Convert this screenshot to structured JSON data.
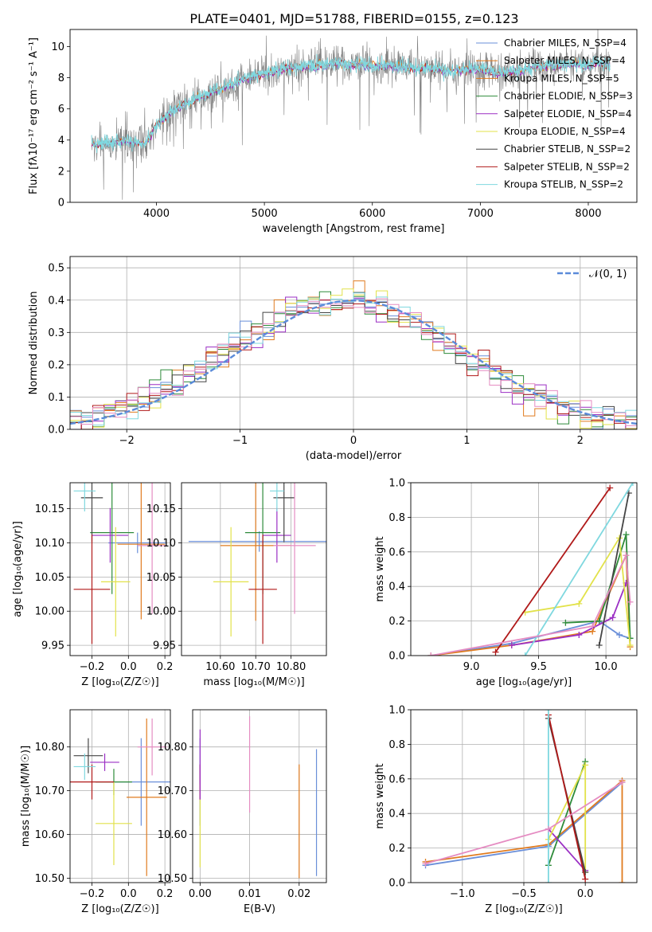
{
  "figure_title": "PLATE=0401, MJD=51788, FIBERID=0155, z=0.123",
  "model_colors": [
    "#6a8fd9",
    "#e07b1f",
    "#2e8b3a",
    "#9b2fc4",
    "#e2e24a",
    "#444444",
    "#b01919",
    "#7fd8df",
    "#e58cc2"
  ],
  "chart_data": [
    {
      "id": "spectrum",
      "type": "line",
      "title": "PLATE=0401, MJD=51788, FIBERID=0155, z=0.123",
      "xlabel": "wavelength [Angstrom, rest frame]",
      "ylabel": "Flux [fλ10⁻¹⁷ erg cm⁻² s⁻¹ A⁻¹]",
      "xlim": [
        3200,
        8450
      ],
      "ylim": [
        0,
        11.1
      ],
      "xticks": [
        4000,
        5000,
        6000,
        7000,
        8000
      ],
      "yticks": [
        0,
        2,
        4,
        6,
        8,
        10
      ],
      "grid": false,
      "legend_position": "top-right",
      "data_color": "#808080",
      "legend": [
        {
          "label": "Chabrier MILES, N_SSP=4",
          "color": "#6a8fd9"
        },
        {
          "label": "Salpeter MILES, N_SSP=4",
          "color": "#e07b1f"
        },
        {
          "label": "Kroupa MILES, N_SSP=5",
          "color": "#e07b1f"
        },
        {
          "label": "Chabrier ELODIE, N_SSP=3",
          "color": "#2e8b3a"
        },
        {
          "label": "Salpeter ELODIE, N_SSP=4",
          "color": "#9b2fc4"
        },
        {
          "label": "Kroupa ELODIE, N_SSP=4",
          "color": "#e2e24a"
        },
        {
          "label": "Chabrier STELIB, N_SSP=2",
          "color": "#444444"
        },
        {
          "label": "Salpeter STELIB, N_SSP=2",
          "color": "#b01919"
        },
        {
          "label": "Kroupa STELIB, N_SSP=2",
          "color": "#7fd8df"
        }
      ],
      "continuum": {
        "x": [
          3400,
          3500,
          3600,
          3700,
          3800,
          3900,
          4000,
          4100,
          4200,
          4300,
          4400,
          4500,
          4600,
          4700,
          4800,
          4900,
          5000,
          5100,
          5200,
          5300,
          5400,
          5500,
          5600,
          5700,
          5800,
          5900,
          6000,
          6100,
          6200,
          6300,
          6400,
          6500,
          6600,
          6700,
          6800,
          6900,
          7000,
          7100,
          7200,
          7300,
          7400,
          7500,
          7600,
          7700,
          7800,
          7900,
          8000,
          8100,
          8200
        ],
        "y": [
          3.7,
          3.8,
          3.9,
          4.0,
          3.9,
          3.8,
          5.0,
          5.6,
          6.2,
          6.4,
          6.8,
          7.1,
          7.3,
          7.6,
          7.9,
          8.1,
          8.3,
          8.4,
          8.6,
          8.7,
          8.8,
          8.8,
          8.9,
          8.9,
          8.9,
          8.9,
          8.8,
          8.8,
          8.8,
          8.7,
          8.6,
          8.7,
          8.6,
          8.4,
          8.5,
          8.6,
          8.6,
          8.4,
          8.3,
          8.4,
          8.5,
          8.7,
          8.8,
          8.8,
          8.9,
          8.9,
          8.8,
          9.0,
          8.9
        ]
      }
    },
    {
      "id": "residuals",
      "type": "line",
      "xlabel": "(data-model)/error",
      "ylabel": "Normed distribution",
      "xlim": [
        -2.5,
        2.5
      ],
      "ylim": [
        0,
        0.535
      ],
      "xticks": [
        -2,
        -1,
        0,
        1,
        2
      ],
      "yticks": [
        0.0,
        0.1,
        0.2,
        0.3,
        0.4,
        0.5
      ],
      "grid": true,
      "legend_position": "top-right",
      "legend": [
        {
          "label": "𝒩(0, 1)",
          "color": "#5b8bd9",
          "style": "dashed"
        }
      ],
      "series": [
        {
          "label": "𝒩(0, 1)",
          "mean": 0,
          "sigma": 1
        }
      ],
      "histogram_bin_width": 0.1
    },
    {
      "id": "z-age",
      "type": "scatter",
      "xlabel": "Z [log₁₀(Z/Z☉)]",
      "ylabel": "age  [log₁₀(age/yr)]",
      "xlim": [
        -0.32,
        0.23
      ],
      "ylim": [
        9.935,
        10.188
      ],
      "xticks": [
        -0.2,
        0.0,
        0.2
      ],
      "yticks": [
        9.95,
        10.0,
        10.05,
        10.1,
        10.15
      ],
      "grid": true,
      "points": [
        {
          "x": 0.05,
          "y": 10.1,
          "xerr": 0.16,
          "yerr": 0.015,
          "color": "#6a8fd9"
        },
        {
          "x": 0.07,
          "y": 10.098,
          "xerr": 0.13,
          "yerr": 0.11,
          "color": "#e07b1f"
        },
        {
          "x": -0.09,
          "y": 10.115,
          "xerr": 0.12,
          "yerr": 0.09,
          "color": "#2e8b3a"
        },
        {
          "x": -0.1,
          "y": 10.111,
          "xerr": 0.1,
          "yerr": 0.04,
          "color": "#9b2fc4"
        },
        {
          "x": -0.07,
          "y": 10.043,
          "xerr": 0.08,
          "yerr": 0.08,
          "color": "#e2e24a"
        },
        {
          "x": -0.2,
          "y": 10.166,
          "xerr": 0.06,
          "yerr": 0.065,
          "color": "#444444"
        },
        {
          "x": -0.2,
          "y": 10.032,
          "xerr": 0.1,
          "yerr": 0.08,
          "color": "#b01919"
        },
        {
          "x": -0.24,
          "y": 10.176,
          "xerr": 0.06,
          "yerr": 0.03,
          "color": "#7fd8df"
        },
        {
          "x": 0.13,
          "y": 10.096,
          "xerr": 0.08,
          "yerr": 0.1,
          "color": "#e58cc2"
        }
      ]
    },
    {
      "id": "mass-age",
      "type": "scatter",
      "xlabel": "mass [log₁₀(M/M☉)]",
      "ylabel": "",
      "xlim": [
        10.49,
        10.9
      ],
      "ylim": [
        9.935,
        10.188
      ],
      "xticks": [
        10.6,
        10.7,
        10.8
      ],
      "yticks": [
        9.95,
        10.0,
        10.05,
        10.1,
        10.15
      ],
      "grid": true,
      "points": [
        {
          "x": 10.71,
          "y": 10.102,
          "xerr": 0.2,
          "yerr": 0.015,
          "color": "#6a8fd9"
        },
        {
          "x": 10.7,
          "y": 10.096,
          "xerr": 0.1,
          "yerr": 0.11,
          "color": "#e07b1f"
        },
        {
          "x": 10.72,
          "y": 10.115,
          "xerr": 0.05,
          "yerr": 0.09,
          "color": "#2e8b3a"
        },
        {
          "x": 10.76,
          "y": 10.111,
          "xerr": 0.04,
          "yerr": 0.04,
          "color": "#9b2fc4"
        },
        {
          "x": 10.63,
          "y": 10.043,
          "xerr": 0.05,
          "yerr": 0.08,
          "color": "#e2e24a"
        },
        {
          "x": 10.78,
          "y": 10.166,
          "xerr": 0.03,
          "yerr": 0.065,
          "color": "#444444"
        },
        {
          "x": 10.72,
          "y": 10.032,
          "xerr": 0.04,
          "yerr": 0.08,
          "color": "#b01919"
        },
        {
          "x": 10.76,
          "y": 10.176,
          "xerr": 0.02,
          "yerr": 0.03,
          "color": "#7fd8df"
        },
        {
          "x": 10.81,
          "y": 10.096,
          "xerr": 0.06,
          "yerr": 0.1,
          "color": "#e58cc2"
        }
      ]
    },
    {
      "id": "age-weight",
      "type": "line",
      "xlabel": "age  [log₁₀(age/yr)]",
      "ylabel": "mass weight",
      "xlim": [
        8.55,
        10.23
      ],
      "ylim": [
        0,
        1
      ],
      "xticks": [
        9.0,
        9.5,
        10.0
      ],
      "yticks": [
        0.0,
        0.2,
        0.4,
        0.6,
        0.8,
        1.0
      ],
      "grid": true,
      "series": [
        {
          "color": "#6a8fd9",
          "x": [
            8.7,
            9.3,
            9.95,
            10.1,
            10.18
          ],
          "y": [
            0.0,
            0.07,
            0.2,
            0.12,
            0.1
          ]
        },
        {
          "color": "#e07b1f",
          "x": [
            8.7,
            9.3,
            9.9,
            10.15,
            10.18
          ],
          "y": [
            0.0,
            0.06,
            0.14,
            0.58,
            0.05
          ]
        },
        {
          "color": "#2e8b3a",
          "x": [
            9.7,
            9.95,
            10.15,
            10.18
          ],
          "y": [
            0.19,
            0.2,
            0.7,
            0.1
          ]
        },
        {
          "color": "#9b2fc4",
          "x": [
            9.3,
            9.8,
            10.05,
            10.15
          ],
          "y": [
            0.06,
            0.12,
            0.22,
            0.42
          ]
        },
        {
          "color": "#e2e24a",
          "x": [
            9.4,
            9.8,
            10.1,
            10.18
          ],
          "y": [
            0.25,
            0.3,
            0.68,
            0.06
          ]
        },
        {
          "color": "#444444",
          "x": [
            9.95,
            10.17
          ],
          "y": [
            0.06,
            0.94
          ]
        },
        {
          "color": "#b01919",
          "x": [
            9.18,
            10.03
          ],
          "y": [
            0.02,
            0.97
          ]
        },
        {
          "color": "#7fd8df",
          "x": [
            9.4,
            10.2
          ],
          "y": [
            0.0,
            1.0
          ]
        },
        {
          "color": "#e58cc2",
          "x": [
            8.7,
            9.9,
            10.15,
            10.18
          ],
          "y": [
            0.0,
            0.17,
            0.58,
            0.31
          ]
        }
      ]
    },
    {
      "id": "z-mass",
      "type": "scatter",
      "xlabel": "Z [log₁₀(Z/Z☉)]",
      "ylabel": "mass [log₁₀(M/M☉)]",
      "xlim": [
        -0.32,
        0.23
      ],
      "ylim": [
        10.49,
        10.885
      ],
      "xticks": [
        -0.2,
        0.0,
        0.2
      ],
      "yticks": [
        10.5,
        10.6,
        10.7,
        10.8
      ],
      "grid": true,
      "points": [
        {
          "x": 0.07,
          "y": 10.72,
          "xerr": 0.16,
          "yerr": 0.1,
          "color": "#6a8fd9"
        },
        {
          "x": 0.1,
          "y": 10.685,
          "xerr": 0.11,
          "yerr": 0.18,
          "color": "#e07b1f"
        },
        {
          "x": -0.08,
          "y": 10.72,
          "xerr": 0.1,
          "yerr": 0.03,
          "color": "#2e8b3a"
        },
        {
          "x": -0.13,
          "y": 10.765,
          "xerr": 0.08,
          "yerr": 0.02,
          "color": "#9b2fc4"
        },
        {
          "x": -0.08,
          "y": 10.625,
          "xerr": 0.1,
          "yerr": 0.095,
          "color": "#e2e24a"
        },
        {
          "x": -0.22,
          "y": 10.78,
          "xerr": 0.08,
          "yerr": 0.04,
          "color": "#444444"
        },
        {
          "x": -0.2,
          "y": 10.72,
          "xerr": 0.12,
          "yerr": 0.04,
          "color": "#b01919"
        },
        {
          "x": -0.24,
          "y": 10.755,
          "xerr": 0.06,
          "yerr": 0.03,
          "color": "#7fd8df"
        },
        {
          "x": 0.13,
          "y": 10.8,
          "xerr": 0.08,
          "yerr": 0.065,
          "color": "#e58cc2"
        }
      ]
    },
    {
      "id": "ebv-mass",
      "type": "scatter",
      "xlabel": "E(B-V)",
      "ylabel": "",
      "xlim": [
        -0.0015,
        0.0255
      ],
      "ylim": [
        10.49,
        10.885
      ],
      "xticks": [
        0.0,
        0.01,
        0.02
      ],
      "yticks": [
        10.5,
        10.6,
        10.7,
        10.8
      ],
      "grid": true,
      "points": [
        {
          "x": 0.0,
          "y": 10.72,
          "yerr": 0.1,
          "color": "#6a8fd9"
        },
        {
          "x": 0.0,
          "y": 10.72,
          "yerr": 0.04,
          "color": "#9b2fc4"
        },
        {
          "x": 0.0,
          "y": 10.62,
          "yerr": 0.095,
          "color": "#e2e24a"
        },
        {
          "x": 0.0,
          "y": 10.72,
          "yerr": 0.04,
          "color": "#b01919"
        },
        {
          "x": 0.0,
          "y": 10.76,
          "yerr": 0.08,
          "color": "#9b2fc4"
        },
        {
          "x": 0.01,
          "y": 10.76,
          "yerr": 0.11,
          "color": "#e58cc2"
        },
        {
          "x": 0.02,
          "y": 10.63,
          "yerr": 0.13,
          "color": "#e07b1f"
        },
        {
          "x": 0.0235,
          "y": 10.65,
          "yerr": 0.145,
          "color": "#6a8fd9"
        }
      ]
    },
    {
      "id": "z-weight",
      "type": "line",
      "xlabel": "Z [log₁₀(Z/Z☉)]",
      "ylabel": "mass weight",
      "xlim": [
        -1.42,
        0.42
      ],
      "ylim": [
        0,
        1
      ],
      "xticks": [
        -1.0,
        -0.5,
        0.0
      ],
      "yticks": [
        0.0,
        0.2,
        0.4,
        0.6,
        0.8,
        1.0
      ],
      "grid": true,
      "series": [
        {
          "color": "#6a8fd9",
          "x": [
            -1.3,
            -0.3,
            0.3
          ],
          "y": [
            0.1,
            0.21,
            0.58
          ]
        },
        {
          "color": "#e07b1f",
          "x": [
            -1.3,
            -0.3,
            0.3,
            0.3
          ],
          "y": [
            0.12,
            0.22,
            0.59,
            0.0
          ]
        },
        {
          "color": "#2e8b3a",
          "x": [
            -0.3,
            0.0
          ],
          "y": [
            0.1,
            0.7
          ]
        },
        {
          "color": "#9b2fc4",
          "x": [
            -0.3,
            0.0
          ],
          "y": [
            0.31,
            0.07
          ]
        },
        {
          "color": "#e2e24a",
          "x": [
            -0.3,
            0.0,
            0.0
          ],
          "y": [
            0.25,
            0.68,
            0.06
          ]
        },
        {
          "color": "#444444",
          "x": [
            -0.3,
            0.0
          ],
          "y": [
            0.95,
            0.06
          ]
        },
        {
          "color": "#b01919",
          "x": [
            -0.3,
            0.0
          ],
          "y": [
            0.97,
            0.02
          ]
        },
        {
          "color": "#7fd8df",
          "x": [
            -0.3,
            -0.3
          ],
          "y": [
            0.0,
            1.0
          ]
        },
        {
          "color": "#e58cc2",
          "x": [
            -1.3,
            -0.3,
            0.3
          ],
          "y": [
            0.11,
            0.31,
            0.58
          ]
        }
      ]
    }
  ]
}
